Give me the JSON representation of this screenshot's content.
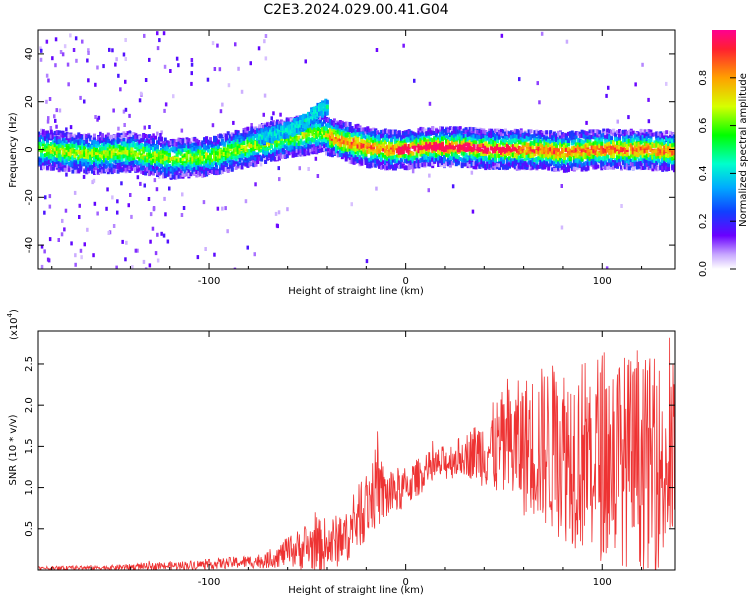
{
  "title": "C2E3.2024.029.00.41.G04",
  "chart_data": [
    {
      "type": "heatmap",
      "xlabel": "Height of straight line (km)",
      "ylabel": "Frequency (Hz)",
      "xlim": [
        -187,
        137
      ],
      "ylim": [
        -50,
        50
      ],
      "xticks": [
        -100,
        0,
        100
      ],
      "yticks": [
        -40,
        -20,
        0,
        20,
        40
      ],
      "colorbar": {
        "label": "Normalized spectral amplitude",
        "range": [
          0,
          1
        ],
        "ticks": [
          0.0,
          0.2,
          0.4,
          0.6,
          0.8
        ]
      },
      "ridge": {
        "x": [
          -187,
          -160,
          -140,
          -120,
          -100,
          -90,
          -80,
          -70,
          -60,
          -50,
          -45,
          -40,
          -35,
          -30,
          -20,
          -10,
          0,
          10,
          20,
          30,
          40,
          60,
          80,
          100,
          120,
          137
        ],
        "y": [
          0,
          -2,
          -1,
          -4,
          -3,
          -1,
          1,
          3,
          5,
          6,
          7,
          6,
          4,
          3,
          1,
          0,
          0,
          1,
          1,
          1,
          0,
          0,
          -1,
          0,
          0,
          -1
        ]
      },
      "branch": {
        "x": [
          -75,
          -65,
          -55,
          -50,
          -45,
          -40
        ],
        "y": [
          5,
          7,
          10,
          13,
          16,
          18
        ]
      },
      "grid": false
    },
    {
      "type": "line",
      "xlabel": "Height of straight line (km)",
      "ylabel": "SNR (10 * v/v)",
      "yscale_label": "(x10",
      "yscale_exp": "4",
      "xlim": [
        -187,
        137
      ],
      "ylim": [
        0,
        2.9
      ],
      "xticks": [
        -100,
        0,
        100
      ],
      "yticks": [
        0.5,
        1.0,
        1.5,
        2.0,
        2.5
      ],
      "color": "#ee3333",
      "envelope": {
        "x": [
          -187,
          -150,
          -120,
          -100,
          -80,
          -70,
          -60,
          -50,
          -40,
          -30,
          -20,
          -15,
          -10,
          0,
          10,
          20,
          30,
          40,
          50,
          60,
          70,
          80,
          90,
          100,
          110,
          120,
          137
        ],
        "base": [
          0.02,
          0.03,
          0.05,
          0.07,
          0.1,
          0.12,
          0.22,
          0.28,
          0.3,
          0.4,
          0.8,
          1.0,
          0.9,
          1.0,
          1.2,
          1.3,
          1.4,
          1.45,
          1.5,
          1.5,
          1.5,
          1.45,
          1.4,
          1.4,
          1.35,
          1.3,
          1.25
        ],
        "amp": [
          0.02,
          0.03,
          0.05,
          0.06,
          0.08,
          0.1,
          0.18,
          0.3,
          0.35,
          0.3,
          0.45,
          0.5,
          0.35,
          0.25,
          0.22,
          0.22,
          0.25,
          0.45,
          0.7,
          0.85,
          1.0,
          1.1,
          1.2,
          1.3,
          1.3,
          1.3,
          1.3
        ]
      },
      "grid": false
    }
  ]
}
